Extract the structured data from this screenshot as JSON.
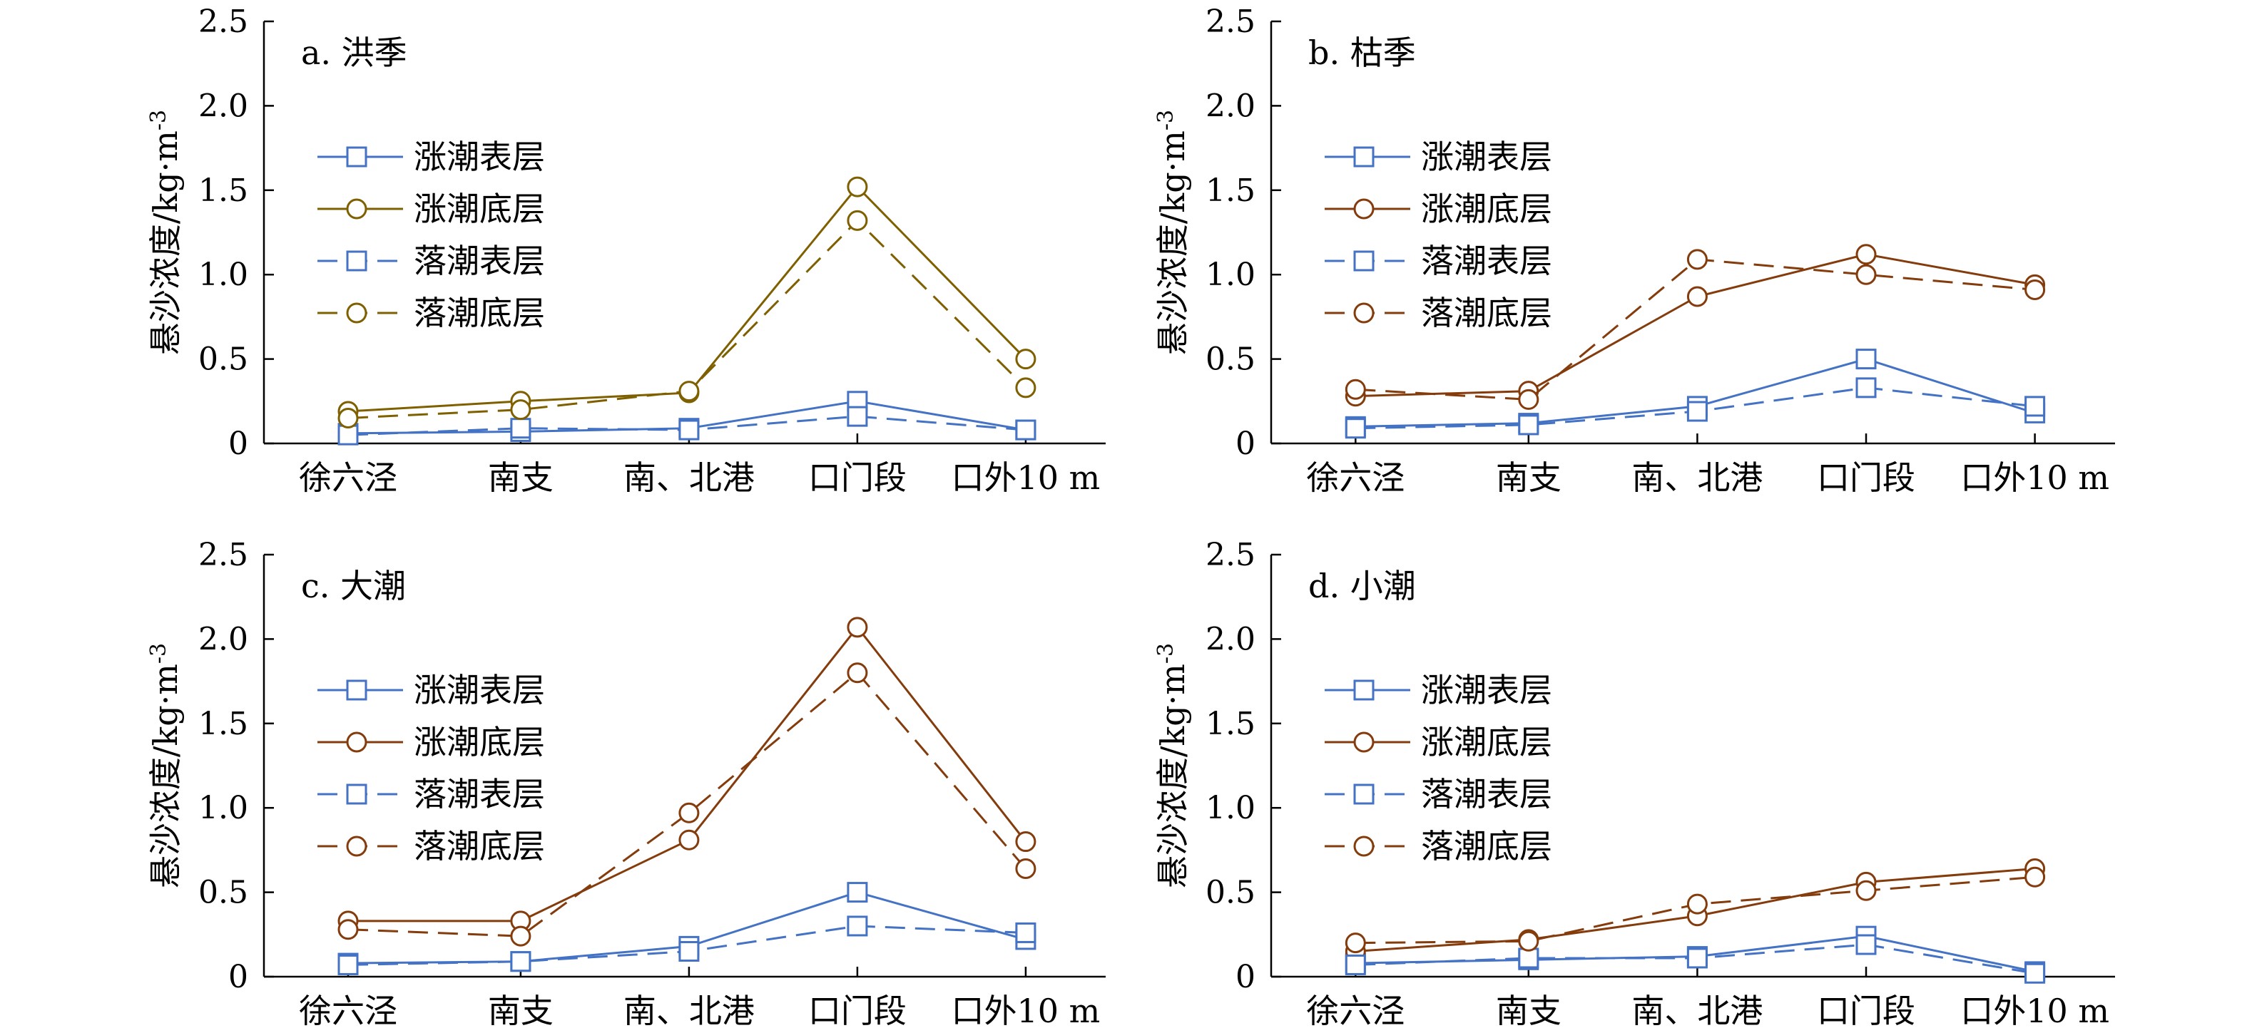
{
  "chart_data": [
    {
      "type": "line",
      "title": "a. 洪季",
      "ylabel": "悬沙浓度/kg·m",
      "ylabel_sup": "-3",
      "categories": [
        "徐六泾",
        "南支",
        "南、北港",
        "口门段",
        "口外10 m"
      ],
      "ylim": [
        0,
        2.5
      ],
      "yticks": [
        "0",
        "0.5",
        "1.0",
        "1.5",
        "2.0",
        "2.5"
      ],
      "legend_position": "upper-left",
      "series": [
        {
          "name": "涨潮表层",
          "marker": "square",
          "dash": "solid",
          "color": "#4472c4",
          "values": [
            0.06,
            0.07,
            0.09,
            0.25,
            0.08
          ]
        },
        {
          "name": "涨潮底层",
          "marker": "circle",
          "dash": "solid",
          "color": "#7f6000",
          "values": [
            0.19,
            0.25,
            0.3,
            1.52,
            0.5
          ]
        },
        {
          "name": "落潮表层",
          "marker": "square",
          "dash": "dashed",
          "color": "#4472c4",
          "values": [
            0.05,
            0.09,
            0.08,
            0.16,
            0.08
          ]
        },
        {
          "name": "落潮底层",
          "marker": "circle",
          "dash": "dashed",
          "color": "#7f6000",
          "values": [
            0.15,
            0.2,
            0.31,
            1.32,
            0.33
          ]
        }
      ]
    },
    {
      "type": "line",
      "title": "b. 枯季",
      "ylabel": "悬沙浓度/kg·m",
      "ylabel_sup": "-3",
      "categories": [
        "徐六泾",
        "南支",
        "南、北港",
        "口门段",
        "口外10 m"
      ],
      "ylim": [
        0,
        2.5
      ],
      "yticks": [
        "0",
        "0.5",
        "1.0",
        "1.5",
        "2.0",
        "2.5"
      ],
      "legend_position": "upper-left",
      "series": [
        {
          "name": "涨潮表层",
          "marker": "square",
          "dash": "solid",
          "color": "#4472c4",
          "values": [
            0.1,
            0.12,
            0.22,
            0.5,
            0.18
          ]
        },
        {
          "name": "涨潮底层",
          "marker": "circle",
          "dash": "solid",
          "color": "#843c0c",
          "values": [
            0.28,
            0.31,
            0.87,
            1.12,
            0.94
          ]
        },
        {
          "name": "落潮表层",
          "marker": "square",
          "dash": "dashed",
          "color": "#4472c4",
          "values": [
            0.09,
            0.11,
            0.19,
            0.33,
            0.22
          ]
        },
        {
          "name": "落潮底层",
          "marker": "circle",
          "dash": "dashed",
          "color": "#843c0c",
          "values": [
            0.32,
            0.26,
            1.09,
            1.0,
            0.91
          ]
        }
      ]
    },
    {
      "type": "line",
      "title": "c. 大潮",
      "ylabel": "悬沙浓度/kg·m",
      "ylabel_sup": "-3",
      "categories": [
        "徐六泾",
        "南支",
        "南、北港",
        "口门段",
        "口外10 m"
      ],
      "ylim": [
        0,
        2.5
      ],
      "yticks": [
        "0",
        "0.5",
        "1.0",
        "1.5",
        "2.0",
        "2.5"
      ],
      "legend_position": "upper-left",
      "series": [
        {
          "name": "涨潮表层",
          "marker": "square",
          "dash": "solid",
          "color": "#4472c4",
          "values": [
            0.08,
            0.09,
            0.18,
            0.5,
            0.22
          ]
        },
        {
          "name": "涨潮底层",
          "marker": "circle",
          "dash": "solid",
          "color": "#843c0c",
          "values": [
            0.33,
            0.33,
            0.81,
            2.07,
            0.8
          ]
        },
        {
          "name": "落潮表层",
          "marker": "square",
          "dash": "dashed",
          "color": "#4472c4",
          "values": [
            0.07,
            0.09,
            0.15,
            0.3,
            0.26
          ]
        },
        {
          "name": "落潮底层",
          "marker": "circle",
          "dash": "dashed",
          "color": "#843c0c",
          "values": [
            0.28,
            0.24,
            0.97,
            1.8,
            0.64
          ]
        }
      ]
    },
    {
      "type": "line",
      "title": "d. 小潮",
      "ylabel": "悬沙浓度/kg·m",
      "ylabel_sup": "-3",
      "categories": [
        "徐六泾",
        "南支",
        "南、北港",
        "口门段",
        "口外10 m"
      ],
      "ylim": [
        0,
        2.5
      ],
      "yticks": [
        "0",
        "0.5",
        "1.0",
        "1.5",
        "2.0",
        "2.5"
      ],
      "legend_position": "upper-left",
      "series": [
        {
          "name": "涨潮表层",
          "marker": "square",
          "dash": "solid",
          "color": "#4472c4",
          "values": [
            0.08,
            0.1,
            0.12,
            0.24,
            0.03
          ]
        },
        {
          "name": "涨潮底层",
          "marker": "circle",
          "dash": "solid",
          "color": "#843c0c",
          "values": [
            0.15,
            0.22,
            0.36,
            0.56,
            0.64
          ]
        },
        {
          "name": "落潮表层",
          "marker": "square",
          "dash": "dashed",
          "color": "#4472c4",
          "values": [
            0.07,
            0.11,
            0.11,
            0.19,
            0.02
          ]
        },
        {
          "name": "落潮底层",
          "marker": "circle",
          "dash": "dashed",
          "color": "#843c0c",
          "values": [
            0.2,
            0.21,
            0.43,
            0.51,
            0.59
          ]
        }
      ]
    }
  ]
}
